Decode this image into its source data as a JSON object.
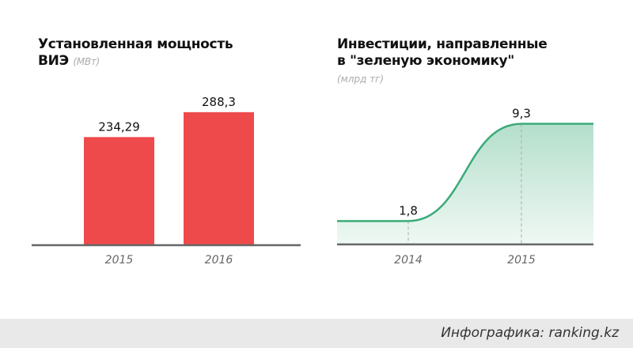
{
  "chart_data": [
    {
      "type": "bar",
      "title": "Установленная мощность ВИЭ",
      "title_line1": "Установленная мощность",
      "title_line2": "ВИЭ",
      "unit": "(МВт)",
      "categories": [
        "2015",
        "2016"
      ],
      "values": [
        234.29,
        288.3
      ],
      "value_labels": [
        "234,29",
        "288,3"
      ],
      "ylim": [
        0,
        300
      ],
      "color": "#ef4a4b",
      "grid": false
    },
    {
      "type": "area",
      "title": "Инвестиции, направленные в \"зеленую экономику\"",
      "title_line1": "Инвестиции, направленные",
      "title_line2": "в \"зеленую экономику\"",
      "unit": "(млрд тг)",
      "categories": [
        "2014",
        "2015"
      ],
      "values": [
        1.8,
        9.3
      ],
      "value_labels": [
        "1,8",
        "9,3"
      ],
      "ylim": [
        0,
        10
      ],
      "color": "#3aaa78",
      "grid": false
    }
  ],
  "footer": {
    "credit": "Инфографика: ranking.kz"
  }
}
